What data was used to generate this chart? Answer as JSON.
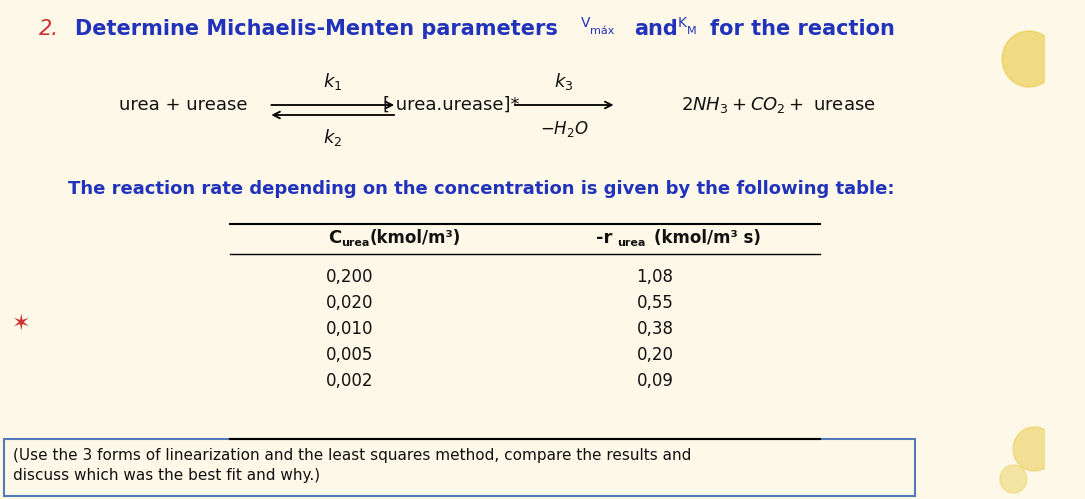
{
  "bg_color": "#fdf8e8",
  "title_number": "2.",
  "title_text": "Determine Michaelis-Menten parameters",
  "title_color": "#2233bb",
  "number_color": "#cc3333",
  "reaction_color": "#111111",
  "subtitle": "The reaction rate depending on the concentration is given by the following table:",
  "subtitle_color": "#2233bb",
  "c_urea": [
    "0,200",
    "0,020",
    "0,010",
    "0,005",
    "0,002"
  ],
  "r_urea": [
    "1,08",
    "0,55",
    "0,38",
    "0,20",
    "0,09"
  ],
  "footnote_line1": "(Use the 3 forms of linearization and the least squares method, compare the results and",
  "footnote_line2": "discuss which was the best fit and why.)",
  "footnote_color": "#111111",
  "footnote_border_color": "#5577bb",
  "table_color": "#111111",
  "star_color": "#cc3333",
  "decor_color": "#e8c840"
}
